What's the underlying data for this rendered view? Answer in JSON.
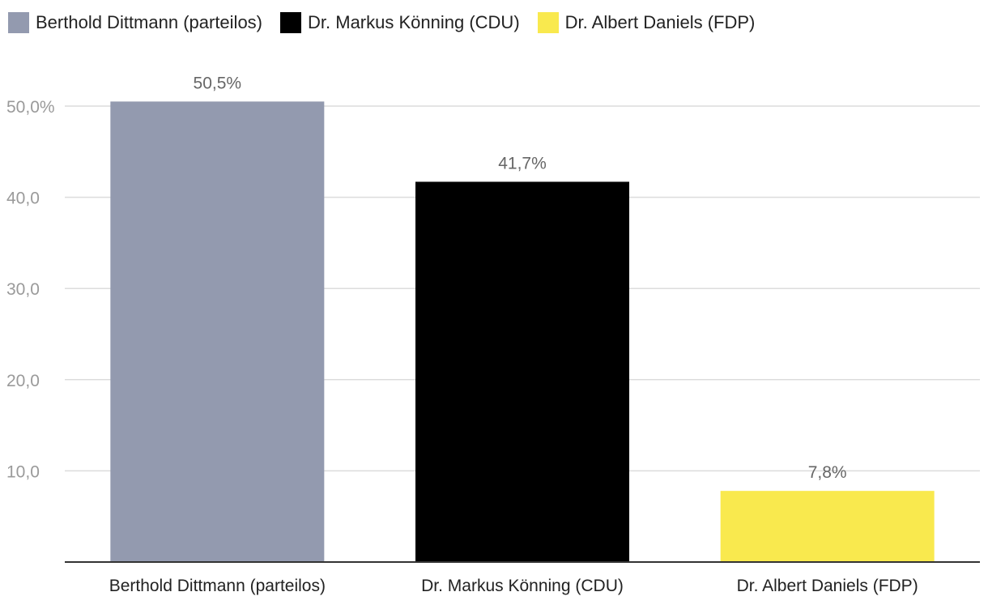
{
  "chart_data": {
    "type": "bar",
    "categories": [
      "Berthold Dittmann (parteilos)",
      "Dr. Markus Könning (CDU)",
      "Dr. Albert Daniels (FDP)"
    ],
    "values": [
      50.5,
      41.7,
      7.8
    ],
    "value_labels": [
      "50,5%",
      "41,7%",
      "7,8%"
    ],
    "colors": [
      "#939aaf",
      "#000000",
      "#f9e94e"
    ],
    "ylim": [
      0,
      50
    ],
    "yticks": [
      10,
      20,
      30,
      40,
      50
    ],
    "ytick_labels": [
      "10,0",
      "20,0",
      "30,0",
      "40,0",
      "50,0%"
    ],
    "grid": true,
    "legend_position": "top-left",
    "legend": [
      {
        "label": "Berthold Dittmann (parteilos)",
        "color": "#939aaf"
      },
      {
        "label": "Dr. Markus Könning (CDU)",
        "color": "#000000"
      },
      {
        "label": "Dr. Albert Daniels (FDP)",
        "color": "#f9e94e"
      }
    ]
  }
}
